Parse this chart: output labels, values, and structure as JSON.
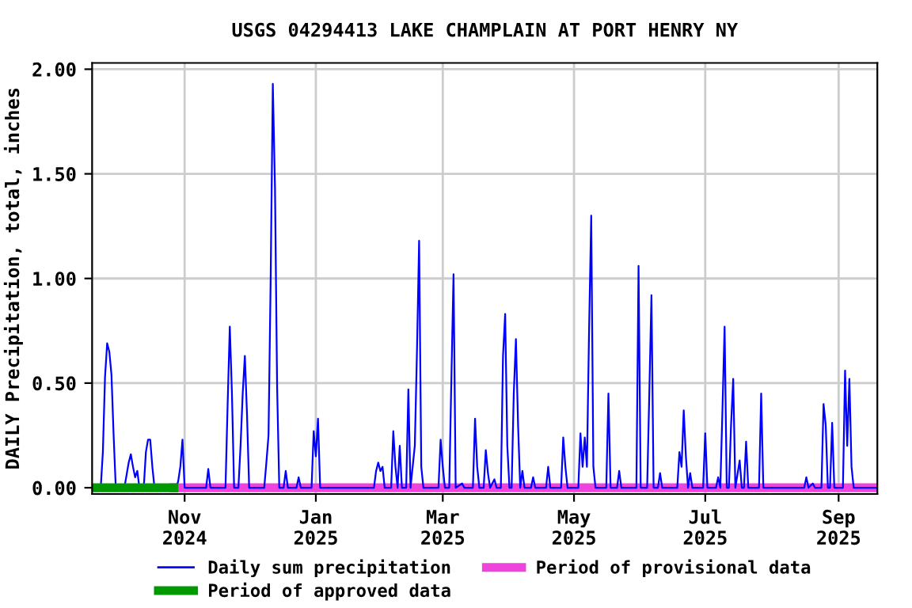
{
  "chart_data": {
    "type": "line",
    "title": "USGS 04294413 LAKE CHAMPLAIN AT PORT HENRY NY",
    "ylabel": "DAILY Precipitation, total, inches",
    "xlim": [
      "2024-09-19",
      "2025-09-19"
    ],
    "xticks": [
      {
        "value": "2024-11-01",
        "label": "Nov\n2024"
      },
      {
        "value": "2025-01-01",
        "label": "Jan\n2025"
      },
      {
        "value": "2025-03-01",
        "label": "Mar\n2025"
      },
      {
        "value": "2025-05-01",
        "label": "May\n2025"
      },
      {
        "value": "2025-07-01",
        "label": "Jul\n2025"
      },
      {
        "value": "2025-09-01",
        "label": "Sep\n2025"
      }
    ],
    "ylim": [
      -0.03,
      2.03
    ],
    "yticks": [
      {
        "value": 0,
        "label": "0.00"
      },
      {
        "value": 0.5,
        "label": "0.50"
      },
      {
        "value": 1,
        "label": "1.00"
      },
      {
        "value": 1.5,
        "label": "1.50"
      },
      {
        "value": 2,
        "label": "2.00"
      }
    ],
    "grid": true,
    "legend": "bottom",
    "series": [
      {
        "name": "Daily sum precipitation",
        "color": "#0000ff",
        "x": [
          "2024-09-19",
          "2024-09-23",
          "2024-09-24",
          "2024-09-25",
          "2024-09-26",
          "2024-09-27",
          "2024-09-28",
          "2024-09-29",
          "2024-09-30",
          "2024-10-04",
          "2024-10-05",
          "2024-10-06",
          "2024-10-07",
          "2024-10-08",
          "2024-10-09",
          "2024-10-10",
          "2024-10-11",
          "2024-10-13",
          "2024-10-14",
          "2024-10-15",
          "2024-10-16",
          "2024-10-17",
          "2024-10-18",
          "2024-10-28",
          "2024-10-29",
          "2024-10-30",
          "2024-10-31",
          "2024-11-01",
          "2024-11-11",
          "2024-11-12",
          "2024-11-13",
          "2024-11-20",
          "2024-11-21",
          "2024-11-22",
          "2024-11-23",
          "2024-11-24",
          "2024-11-26",
          "2024-11-27",
          "2024-11-28",
          "2024-11-29",
          "2024-11-30",
          "2024-12-01",
          "2024-12-08",
          "2024-12-09",
          "2024-12-10",
          "2024-12-11",
          "2024-12-12",
          "2024-12-13",
          "2024-12-14",
          "2024-12-15",
          "2024-12-17",
          "2024-12-18",
          "2024-12-19",
          "2024-12-23",
          "2024-12-24",
          "2024-12-25",
          "2024-12-30",
          "2024-12-31",
          "2025-01-01",
          "2025-01-02",
          "2025-01-03",
          "2025-01-28",
          "2025-01-29",
          "2025-01-30",
          "2025-01-31",
          "2025-02-01",
          "2025-02-02",
          "2025-02-05",
          "2025-02-06",
          "2025-02-07",
          "2025-02-08",
          "2025-02-09",
          "2025-02-10",
          "2025-02-12",
          "2025-02-13",
          "2025-02-14",
          "2025-02-16",
          "2025-02-17",
          "2025-02-18",
          "2025-02-19",
          "2025-02-20",
          "2025-02-27",
          "2025-02-28",
          "2025-03-01",
          "2025-03-02",
          "2025-03-04",
          "2025-03-05",
          "2025-03-06",
          "2025-03-07",
          "2025-03-10",
          "2025-03-11",
          "2025-03-15",
          "2025-03-16",
          "2025-03-17",
          "2025-03-18",
          "2025-03-20",
          "2025-03-21",
          "2025-03-22",
          "2025-03-23",
          "2025-03-25",
          "2025-03-26",
          "2025-03-28",
          "2025-03-29",
          "2025-03-30",
          "2025-03-31",
          "2025-04-01",
          "2025-04-02",
          "2025-04-03",
          "2025-04-04",
          "2025-04-05",
          "2025-04-06",
          "2025-04-07",
          "2025-04-08",
          "2025-04-11",
          "2025-04-12",
          "2025-04-13",
          "2025-04-18",
          "2025-04-19",
          "2025-04-20",
          "2025-04-25",
          "2025-04-26",
          "2025-04-27",
          "2025-04-28",
          "2025-05-03",
          "2025-05-04",
          "2025-05-05",
          "2025-05-06",
          "2025-05-07",
          "2025-05-08",
          "2025-05-09",
          "2025-05-10",
          "2025-05-11",
          "2025-05-16",
          "2025-05-17",
          "2025-05-18",
          "2025-05-21",
          "2025-05-22",
          "2025-05-23",
          "2025-05-30",
          "2025-05-31",
          "2025-06-01",
          "2025-06-04",
          "2025-06-05",
          "2025-06-06",
          "2025-06-07",
          "2025-06-09",
          "2025-06-10",
          "2025-06-11",
          "2025-06-18",
          "2025-06-19",
          "2025-06-20",
          "2025-06-21",
          "2025-06-22",
          "2025-06-23",
          "2025-06-24",
          "2025-06-25",
          "2025-06-30",
          "2025-07-01",
          "2025-07-02",
          "2025-07-06",
          "2025-07-07",
          "2025-07-08",
          "2025-07-09",
          "2025-07-10",
          "2025-07-11",
          "2025-07-12",
          "2025-07-13",
          "2025-07-14",
          "2025-07-15",
          "2025-07-17",
          "2025-07-18",
          "2025-07-19",
          "2025-07-20",
          "2025-07-21",
          "2025-07-26",
          "2025-07-27",
          "2025-07-28",
          "2025-08-16",
          "2025-08-17",
          "2025-08-18",
          "2025-08-20",
          "2025-08-21",
          "2025-08-24",
          "2025-08-25",
          "2025-08-26",
          "2025-08-27",
          "2025-08-28",
          "2025-08-29",
          "2025-08-30",
          "2025-09-03",
          "2025-09-04",
          "2025-09-05",
          "2025-09-06",
          "2025-09-07",
          "2025-09-08",
          "2025-09-19"
        ],
        "values": [
          0,
          0,
          0.17,
          0.53,
          0.69,
          0.65,
          0.54,
          0.25,
          0,
          0,
          0.06,
          0.12,
          0.16,
          0.1,
          0.05,
          0.08,
          0,
          0,
          0.17,
          0.23,
          0.23,
          0.1,
          0,
          0,
          0.03,
          0.1,
          0.23,
          0,
          0,
          0.09,
          0,
          0,
          0.4,
          0.77,
          0.45,
          0,
          0,
          0.2,
          0.45,
          0.63,
          0.35,
          0,
          0,
          0.12,
          0.25,
          1.0,
          1.93,
          1.44,
          0.48,
          0,
          0,
          0.08,
          0,
          0,
          0.05,
          0,
          0,
          0.27,
          0.15,
          0.33,
          0,
          0,
          0.08,
          0.12,
          0.08,
          0.1,
          0,
          0,
          0.27,
          0.1,
          0,
          0.2,
          0,
          0,
          0.47,
          0,
          0.2,
          0.65,
          1.18,
          0.1,
          0,
          0,
          0.23,
          0.1,
          0,
          0,
          0.52,
          1.02,
          0,
          0.02,
          0,
          0,
          0.33,
          0.1,
          0,
          0,
          0.18,
          0.07,
          0,
          0.04,
          0,
          0,
          0.63,
          0.83,
          0.2,
          0,
          0,
          0.45,
          0.71,
          0.3,
          0,
          0.08,
          0,
          0,
          0.05,
          0,
          0,
          0.1,
          0,
          0,
          0.24,
          0.1,
          0,
          0,
          0.26,
          0.1,
          0.24,
          0.1,
          0.75,
          1.3,
          0.1,
          0,
          0,
          0.45,
          0,
          0,
          0.08,
          0,
          0,
          1.06,
          0,
          0,
          0.45,
          0.92,
          0,
          0,
          0.07,
          0,
          0,
          0.17,
          0.1,
          0.37,
          0.15,
          0,
          0.07,
          0,
          0,
          0.26,
          0,
          0,
          0.05,
          0,
          0.37,
          0.77,
          0,
          0,
          0.3,
          0.52,
          0,
          0.13,
          0,
          0,
          0.22,
          0,
          0,
          0.45,
          0,
          0,
          0.05,
          0,
          0.02,
          0,
          0,
          0.4,
          0.3,
          0,
          0,
          0.31,
          0,
          0,
          0.56,
          0.2,
          0.52,
          0.1,
          0,
          0
        ]
      },
      {
        "name": "Period of approved data",
        "color": "#009900",
        "x": [
          "2024-09-19",
          "2024-10-27"
        ],
        "values": [
          0,
          0
        ]
      },
      {
        "name": "Period of provisional data",
        "color": "#ee44dd",
        "x": [
          "2024-10-27",
          "2025-09-19"
        ],
        "values": [
          0,
          0
        ]
      }
    ]
  }
}
